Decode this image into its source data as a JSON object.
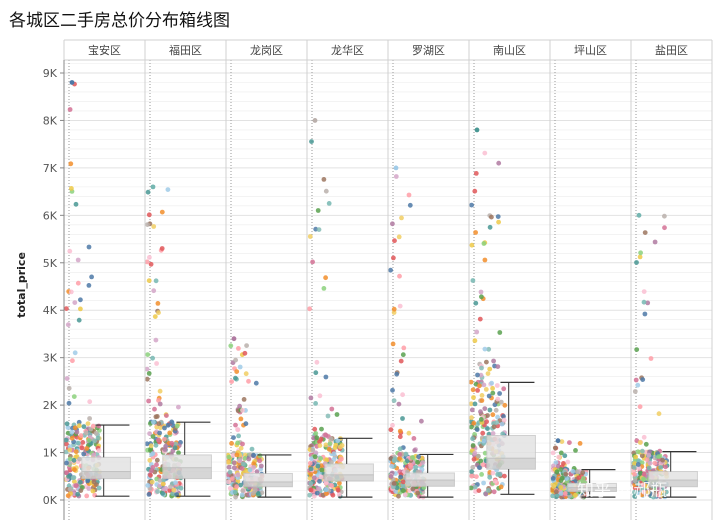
{
  "title": "各城区二手房总价分布箱线图",
  "watermark": "知乎 @郝瓶",
  "chart_data": {
    "type": "box",
    "title": "各城区二手房总价分布箱线图",
    "xlabel": "",
    "ylabel": "total_price",
    "ylim": [
      0,
      9300
    ],
    "yticks": [
      0,
      1000,
      2000,
      3000,
      4000,
      5000,
      6000,
      7000,
      8000,
      9000
    ],
    "ytick_labels": [
      "0K",
      "1K",
      "2K",
      "3K",
      "4K",
      "5K",
      "6K",
      "7K",
      "8K",
      "9K"
    ],
    "grid": true,
    "jitter_points_shown": true,
    "categories": [
      "宝安区",
      "福田区",
      "龙岗区",
      "龙华区",
      "罗湖区",
      "南山区",
      "坪山区",
      "盐田区"
    ],
    "boxes": [
      {
        "district": "宝安区",
        "whisker_low": 80,
        "q1": 450,
        "median": 600,
        "q3": 900,
        "whisker_high": 1580,
        "max": 8800
      },
      {
        "district": "福田区",
        "whisker_low": 80,
        "q1": 450,
        "median": 680,
        "q3": 950,
        "whisker_high": 1640,
        "max": 6600
      },
      {
        "district": "龙岗区",
        "whisker_low": 60,
        "q1": 280,
        "median": 380,
        "q3": 560,
        "whisker_high": 950,
        "max": 3400
      },
      {
        "district": "龙华区",
        "whisker_low": 60,
        "q1": 400,
        "median": 530,
        "q3": 760,
        "whisker_high": 1300,
        "max": 8000
      },
      {
        "district": "罗湖区",
        "whisker_low": 60,
        "q1": 290,
        "median": 420,
        "q3": 570,
        "whisker_high": 960,
        "max": 7000
      },
      {
        "district": "南山区",
        "whisker_low": 120,
        "q1": 650,
        "median": 880,
        "q3": 1360,
        "whisker_high": 2480,
        "max": 7800
      },
      {
        "district": "坪山区",
        "whisker_low": 60,
        "q1": 180,
        "median": 260,
        "q3": 350,
        "whisker_high": 640,
        "max": 1250
      },
      {
        "district": "盐田区",
        "whisker_low": 60,
        "q1": 280,
        "median": 420,
        "q3": 600,
        "whisker_high": 1020,
        "max": 6000
      }
    ]
  },
  "colors": {
    "points": [
      "#4e79a7",
      "#f28e2b",
      "#e15759",
      "#76b7b2",
      "#59a14f",
      "#edc948",
      "#b07aa1",
      "#ff9da7",
      "#9c755f",
      "#bab0ac",
      "#d37295",
      "#8cd17d",
      "#a0cbe8",
      "#86bcb6",
      "#f1ce63",
      "#499894",
      "#d4a6c8",
      "#fabfd2"
    ],
    "box_fill": "#d9d9d9",
    "whisker": "#333333",
    "grid": "#ececec",
    "panel_border": "#d0d0d0"
  }
}
